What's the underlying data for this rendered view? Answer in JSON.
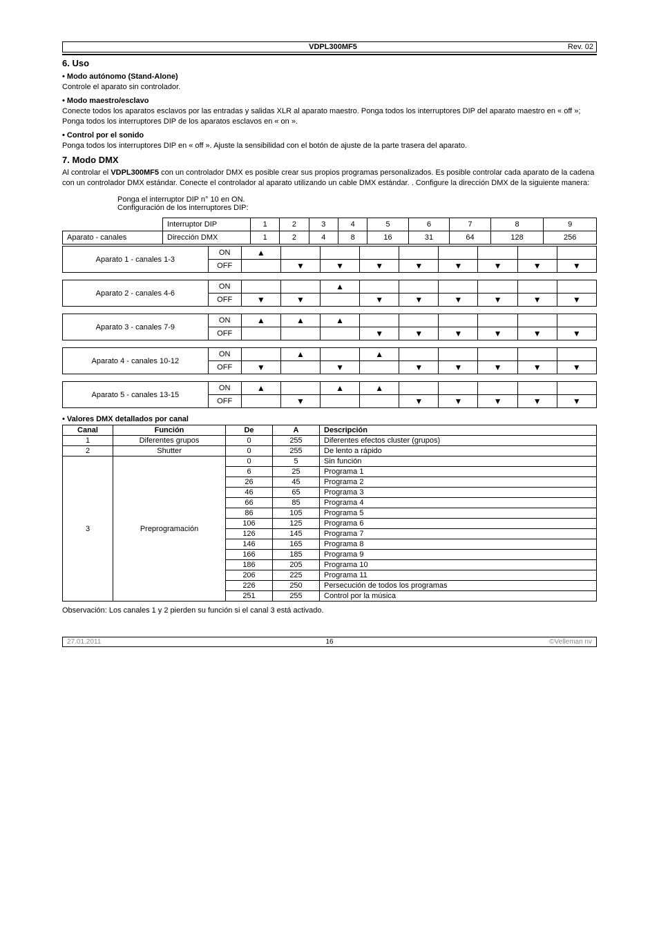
{
  "header": {
    "model": "VDPL300MF5",
    "rev": "Rev. 02"
  },
  "sections": {
    "uso_title": "6.  Uso",
    "autonomo_h": "Modo autónomo (Stand-Alone)",
    "autonomo_p": "Controle el aparato sin controlador.",
    "maestro_h": "Modo maestro/esclavo",
    "maestro_p": "Conecte todos los aparatos esclavos por las entradas y salidas XLR al aparato maestro. Ponga todos los interruptores DIP del aparato maestro en « off »; Ponga todos los interruptores DIP de los aparatos esclavos en « on ».",
    "sonido_h": "Control por el sonido",
    "sonido_p": "Ponga todos los interruptores DIP en « off ». Ajuste la sensibilidad con el botón de ajuste de la parte trasera del aparato.",
    "dmx_title": "7.  Modo DMX",
    "dmx_p": "Al controlar el VDPL300MF5 con un controlador DMX es posible crear sus propios programas personalizados. Es posible controlar cada aparato de la cadena con un controlador DMX estándar. Conecte el controlador al aparato utilizando un cable DMX estándar. . Configure la dirección DMX de la siguiente manera:",
    "dmx_bold_inline": "VDPL300MF5",
    "dip_note1": "Ponga el interruptor DIP n° 10 en ON.",
    "dip_note2": "Configuración de los interruptores DIP:",
    "valores_h": "Valores DMX detallados por canal",
    "obs": "Observación: Los canales 1 y 2 pierden su función si el canal 3 está activado."
  },
  "dip_header": {
    "row1_label": "Interruptor DIP",
    "row1_vals": [
      "1",
      "2",
      "3",
      "4",
      "5",
      "6",
      "7",
      "8",
      "9"
    ],
    "row2_label1": "Aparato - canales",
    "row2_label2": "Dirección DMX",
    "row2_vals": [
      "1",
      "2",
      "4",
      "8",
      "16",
      "31",
      "64",
      "128",
      "256"
    ]
  },
  "dip_devices": [
    {
      "label": "Aparato 1 - canales 1-3",
      "on": [
        "▲",
        "",
        "",
        "",
        "",
        "",
        "",
        "",
        ""
      ],
      "off": [
        "",
        "▼",
        "▼",
        "▼",
        "▼",
        "▼",
        "▼",
        "▼",
        "▼"
      ]
    },
    {
      "label": "Aparato 2 - canales 4-6",
      "on": [
        "",
        "",
        "▲",
        "",
        "",
        "",
        "",
        "",
        ""
      ],
      "off": [
        "▼",
        "▼",
        "",
        "▼",
        "▼",
        "▼",
        "▼",
        "▼",
        "▼"
      ]
    },
    {
      "label": "Aparato 3 - canales 7-9",
      "on": [
        "▲",
        "▲",
        "▲",
        "",
        "",
        "",
        "",
        "",
        ""
      ],
      "off": [
        "",
        "",
        "",
        "▼",
        "▼",
        "▼",
        "▼",
        "▼",
        "▼"
      ]
    },
    {
      "label": "Aparato 4 - canales 10-12",
      "on": [
        "",
        "▲",
        "",
        "▲",
        "",
        "",
        "",
        "",
        ""
      ],
      "off": [
        "▼",
        "",
        "▼",
        "",
        "▼",
        "▼",
        "▼",
        "▼",
        "▼"
      ]
    },
    {
      "label": "Aparato 5 - canales 13-15",
      "on": [
        "▲",
        "",
        "▲",
        "▲",
        "",
        "",
        "",
        "",
        ""
      ],
      "off": [
        "",
        "▼",
        "",
        "",
        "▼",
        "▼",
        "▼",
        "▼",
        "▼"
      ]
    }
  ],
  "dmx_table": {
    "headers": [
      "Canal",
      "Función",
      "De",
      "A",
      "Descripción"
    ],
    "rows": [
      {
        "canal": "1",
        "funcion": "Diferentes grupos",
        "de": "0",
        "a": "255",
        "desc": "Diferentes efectos cluster (grupos)"
      },
      {
        "canal": "2",
        "funcion": "Shutter",
        "de": "0",
        "a": "255",
        "desc": "De lento a rápido"
      }
    ],
    "ch3_label": "3",
    "ch3_func": "Preprogramación",
    "ch3_rows": [
      {
        "de": "0",
        "a": "5",
        "desc": "Sin función"
      },
      {
        "de": "6",
        "a": "25",
        "desc": "Programa 1"
      },
      {
        "de": "26",
        "a": "45",
        "desc": "Programa 2"
      },
      {
        "de": "46",
        "a": "65",
        "desc": "Programa 3"
      },
      {
        "de": "66",
        "a": "85",
        "desc": "Programa 4"
      },
      {
        "de": "86",
        "a": "105",
        "desc": "Programa 5"
      },
      {
        "de": "106",
        "a": "125",
        "desc": "Programa 6"
      },
      {
        "de": "126",
        "a": "145",
        "desc": "Programa 7"
      },
      {
        "de": "146",
        "a": "165",
        "desc": "Programa 8"
      },
      {
        "de": "166",
        "a": "185",
        "desc": "Programa 9"
      },
      {
        "de": "186",
        "a": "205",
        "desc": "Programa 10"
      },
      {
        "de": "206",
        "a": "225",
        "desc": "Programa 11"
      },
      {
        "de": "226",
        "a": "250",
        "desc": "Persecución de todos los programas"
      },
      {
        "de": "251",
        "a": "255",
        "desc": "Control por la música"
      }
    ]
  },
  "footer": {
    "date": "27.01.2011",
    "page": "16",
    "copyright": "©Velleman nv"
  },
  "labels": {
    "on": "ON",
    "off": "OFF"
  }
}
